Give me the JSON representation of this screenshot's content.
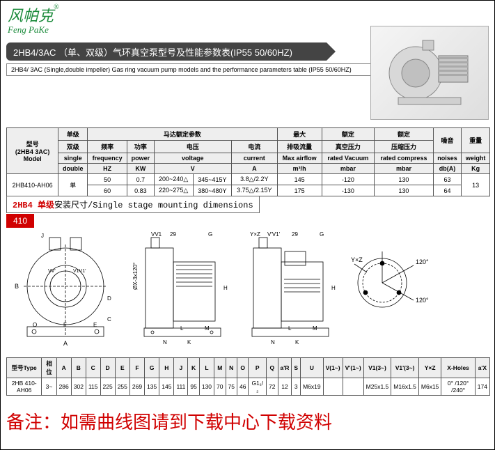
{
  "logo": {
    "cn": "风帕克",
    "tm": "®",
    "en": "Feng PaKe"
  },
  "title_bar": "2HB4/3AC （单、双级）气环真空泵型号及性能参数表(IP55 50/60HZ)",
  "subtitle": "2HB4/ 3AC (Single,double impeller) Gas ring vacuum pump models and the performance parameters table (IP55 50/60HZ)",
  "spec_table": {
    "headers": {
      "c0a": "型号",
      "c0b": "(2HB4 3AC)",
      "c0c": "Model",
      "c1a": "单级",
      "c1b": "双级",
      "c1c": "single",
      "c1d": "double",
      "motor_group": "马达额定参数",
      "freq_cn": "频率",
      "freq_en": "frequency",
      "freq_unit": "HZ",
      "pow_cn": "功率",
      "pow_en": "power",
      "pow_unit": "KW",
      "volt_cn": "电压",
      "volt_en": "voltage",
      "volt_unit": "V",
      "curr_cn": "电流",
      "curr_en": "current",
      "curr_unit": "A",
      "max_cn": "最大",
      "flow_cn": "排吸流量",
      "flow_en": "Max airflow",
      "flow_unit": "m³/h",
      "rated_cn": "额定",
      "vac_cn": "真空压力",
      "vac_en": "rated Vacuum",
      "vac_unit": "mbar",
      "comp_cn": "压缩压力",
      "comp_en": "rated compress",
      "comp_unit": "mbar",
      "noise_cn": "噪音",
      "noise_en": "noises",
      "noise_unit": "db(A)",
      "weight_cn": "重量",
      "weight_en": "weight",
      "weight_unit": "Kg"
    },
    "row": {
      "model": "2HB410-AH06",
      "stage": "单",
      "hz1": "50",
      "kw1": "0.7",
      "v1a": "200~240△",
      "v1b": "345~415Y",
      "a1": "3.8△/2.2Y",
      "flow1": "145",
      "vac1": "-120",
      "comp1": "130",
      "db1": "63",
      "hz2": "60",
      "kw2": "0.83",
      "v2a": "220~275△",
      "v2b": "380~480Y",
      "a2": "3.75△/2.15Y",
      "flow2": "175",
      "vac2": "-130",
      "comp2": "130",
      "db2": "64",
      "kg": "13"
    }
  },
  "dimensions_title": {
    "red": "2HB4 单级",
    "black": "安装尺寸/Single stage mounting dimensions"
  },
  "badge": "410",
  "dim_table": {
    "headers": [
      "型号Type",
      "相位",
      "A",
      "B",
      "C",
      "D",
      "E",
      "F",
      "G",
      "H",
      "J",
      "K",
      "L",
      "M",
      "N",
      "O",
      "P",
      "Q",
      "a'R",
      "S",
      "U",
      "V(1~)",
      "V'(1~)",
      "V1(3~)",
      "V1'(3~)",
      "Y×Z",
      "X-Holes",
      "a'X"
    ],
    "row": [
      "2HB 410-AH06",
      "3~",
      "286",
      "302",
      "115",
      "225",
      "255",
      "269",
      "135",
      "145",
      "111",
      "95",
      "130",
      "70",
      "75",
      "46",
      "G1₁/₂",
      "72",
      "12",
      "3",
      "M6x19",
      "",
      "",
      "M25x1.5",
      "M16x1.5",
      "M6x15",
      "0° /120° /240°",
      "174"
    ]
  },
  "footer": "备注：如需曲线图请到下载中心下载资料",
  "colors": {
    "brand_green": "#1a8a3a",
    "bar_gray": "#444444",
    "accent_red": "#d00000",
    "table_fill": "#eeeeee",
    "border": "#555555"
  }
}
